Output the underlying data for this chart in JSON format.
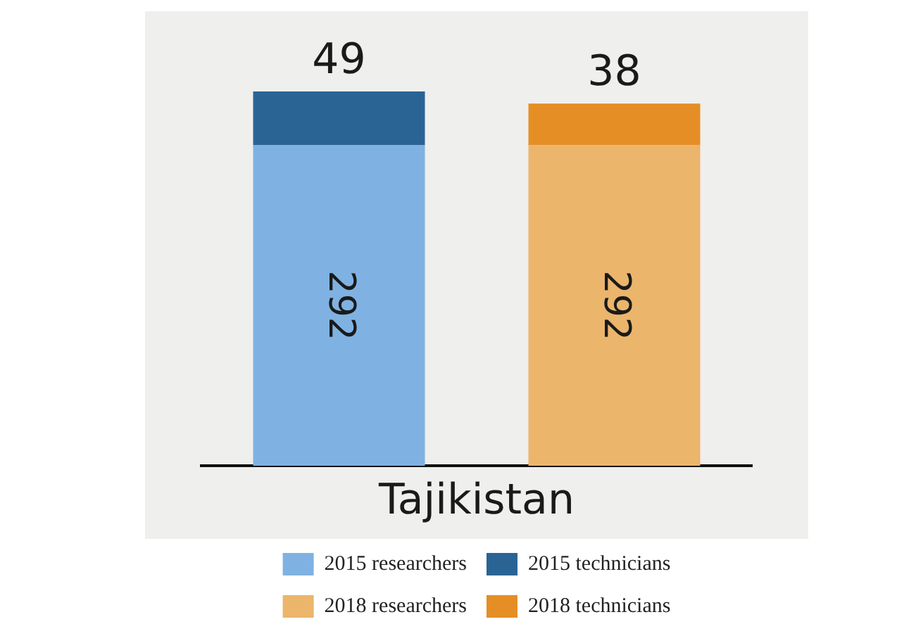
{
  "chart_data": {
    "type": "bar",
    "stacked": true,
    "data_labels": true,
    "xlabel": "Tajikistan",
    "legend": "bottom",
    "grid": false,
    "categories": [
      null,
      null
    ],
    "series": [
      {
        "name": "2015 researchers",
        "color": "#7fb2e2",
        "values": [
          292,
          null
        ]
      },
      {
        "name": "2015 technicians",
        "color": "#2a6495",
        "values": [
          49,
          null
        ]
      },
      {
        "name": "2018 researchers",
        "color": "#ebb56c",
        "values": [
          null,
          292
        ]
      },
      {
        "name": "2018 technicians",
        "color": "#e58e25",
        "values": [
          null,
          38
        ]
      }
    ]
  }
}
